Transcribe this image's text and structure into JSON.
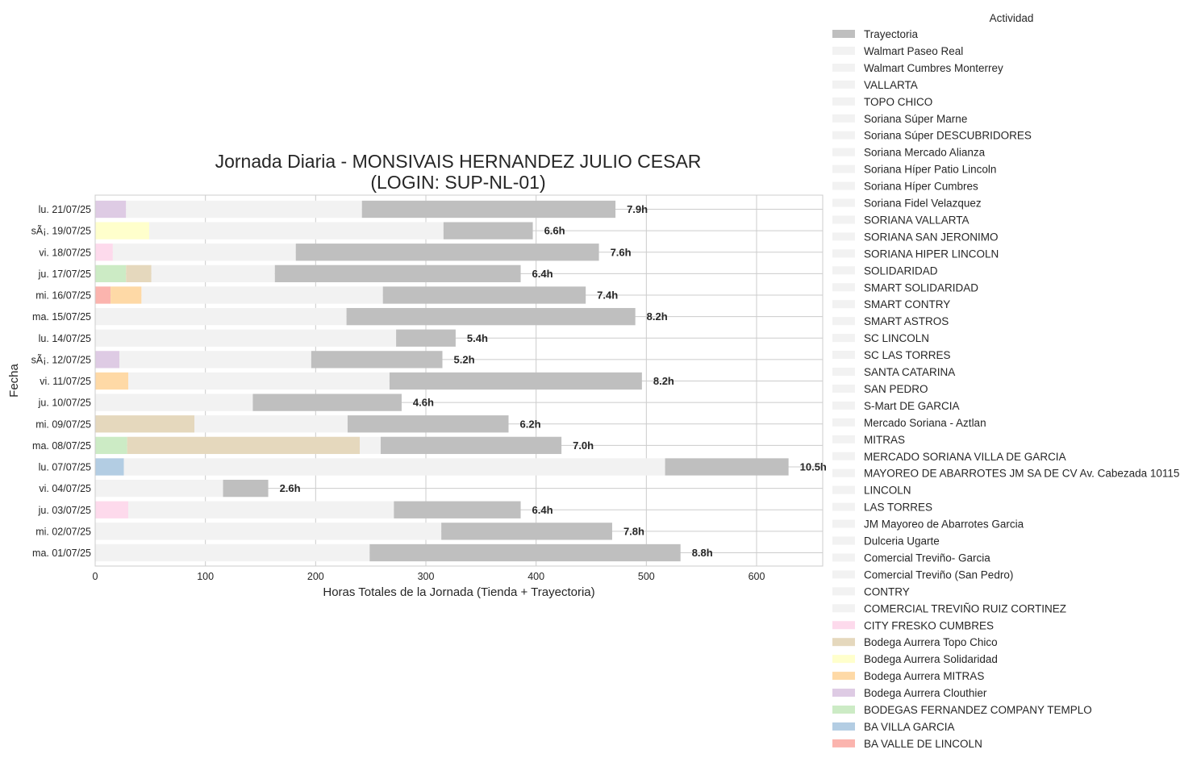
{
  "chart_data": {
    "type": "bar",
    "orientation": "horizontal",
    "stacked": true,
    "title": "Jornada Diaria - MONSIVAIS HERNANDEZ JULIO CESAR",
    "subtitle": "(LOGIN: SUP-NL-01)",
    "xlabel": "Horas Totales de la Jornada (Tienda + Trayectoria)",
    "ylabel": "Fecha",
    "xlim": [
      0,
      660
    ],
    "xticks": [
      "0",
      "100",
      "200",
      "300",
      "400",
      "500",
      "600"
    ],
    "grid": true,
    "legend_title": "Actividad",
    "legend_position": "right-outside",
    "legend": [
      {
        "label": "Trayectoria",
        "color": "#bfbfbf"
      },
      {
        "label": "Walmart Paseo Real",
        "color": "#f2f2f2"
      },
      {
        "label": "Walmart Cumbres Monterrey",
        "color": "#f2f2f2"
      },
      {
        "label": "VALLARTA",
        "color": "#f2f2f2"
      },
      {
        "label": "TOPO CHICO",
        "color": "#f2f2f2"
      },
      {
        "label": "Soriana Súper Marne",
        "color": "#f2f2f2"
      },
      {
        "label": "Soriana Súper DESCUBRIDORES",
        "color": "#f2f2f2"
      },
      {
        "label": "Soriana Mercado Alianza",
        "color": "#f2f2f2"
      },
      {
        "label": "Soriana Híper Patio Lincoln",
        "color": "#f2f2f2"
      },
      {
        "label": "Soriana Híper Cumbres",
        "color": "#f2f2f2"
      },
      {
        "label": "Soriana Fidel Velazquez",
        "color": "#f2f2f2"
      },
      {
        "label": "SORIANA VALLARTA",
        "color": "#f2f2f2"
      },
      {
        "label": "SORIANA SAN JERONIMO",
        "color": "#f2f2f2"
      },
      {
        "label": "SORIANA HIPER LINCOLN",
        "color": "#f2f2f2"
      },
      {
        "label": "SOLIDARIDAD",
        "color": "#f2f2f2"
      },
      {
        "label": "SMART SOLIDARIDAD",
        "color": "#f2f2f2"
      },
      {
        "label": "SMART CONTRY",
        "color": "#f2f2f2"
      },
      {
        "label": "SMART ASTROS",
        "color": "#f2f2f2"
      },
      {
        "label": "SC LINCOLN",
        "color": "#f2f2f2"
      },
      {
        "label": "SC LAS TORRES",
        "color": "#f2f2f2"
      },
      {
        "label": "SANTA CATARINA",
        "color": "#f2f2f2"
      },
      {
        "label": "SAN PEDRO",
        "color": "#f2f2f2"
      },
      {
        "label": "S-Mart DE GARCIA",
        "color": "#f2f2f2"
      },
      {
        "label": "Mercado Soriana - Aztlan",
        "color": "#f2f2f2"
      },
      {
        "label": "MITRAS",
        "color": "#f2f2f2"
      },
      {
        "label": "MERCADO SORIANA VILLA DE GARCIA",
        "color": "#f2f2f2"
      },
      {
        "label": "MAYOREO DE ABARROTES JM SA DE CV Av. Cabezada 10115",
        "color": "#f2f2f2"
      },
      {
        "label": "LINCOLN",
        "color": "#f2f2f2"
      },
      {
        "label": "LAS TORRES",
        "color": "#f2f2f2"
      },
      {
        "label": "JM Mayoreo de Abarrotes Garcia",
        "color": "#f2f2f2"
      },
      {
        "label": "Dulceria Ugarte",
        "color": "#f2f2f2"
      },
      {
        "label": "Comercial Treviño- Garcia",
        "color": "#f2f2f2"
      },
      {
        "label": "Comercial Treviño (San Pedro)",
        "color": "#f2f2f2"
      },
      {
        "label": "CONTRY",
        "color": "#f2f2f2"
      },
      {
        "label": "COMERCIAL TREVIÑO RUIZ CORTINEZ",
        "color": "#f2f2f2"
      },
      {
        "label": "CITY FRESKO CUMBRES",
        "color": "#fddaec"
      },
      {
        "label": "Bodega Aurrera Topo Chico",
        "color": "#e5d8bd"
      },
      {
        "label": "Bodega Aurrera Solidaridad",
        "color": "#ffffcc"
      },
      {
        "label": "Bodega Aurrera MITRAS",
        "color": "#fed9a6"
      },
      {
        "label": "Bodega Aurrera Clouthier",
        "color": "#decbe4"
      },
      {
        "label": "BODEGAS FERNANDEZ COMPANY TEMPLO",
        "color": "#ccebc5"
      },
      {
        "label": "BA VILLA GARCIA",
        "color": "#b3cde3"
      },
      {
        "label": "BA VALLE DE LINCOLN",
        "color": "#fbb4ae"
      }
    ],
    "rows": [
      {
        "date": "lu. 21/07/25",
        "total_label": "7.9h",
        "segments": [
          {
            "activity": "Bodega Aurrera Clouthier",
            "start": 0,
            "end": 28
          },
          {
            "activity": "Walmart Paseo Real",
            "start": 28,
            "end": 242
          },
          {
            "activity": "Trayectoria",
            "start": 242,
            "end": 472
          }
        ]
      },
      {
        "date": "sÃ¡. 19/07/25",
        "total_label": "6.6h",
        "segments": [
          {
            "activity": "Bodega Aurrera Solidaridad",
            "start": 0,
            "end": 49
          },
          {
            "activity": "Walmart Paseo Real",
            "start": 49,
            "end": 316
          },
          {
            "activity": "Trayectoria",
            "start": 316,
            "end": 397
          }
        ]
      },
      {
        "date": "vi. 18/07/25",
        "total_label": "7.6h",
        "segments": [
          {
            "activity": "CITY FRESKO CUMBRES",
            "start": 0,
            "end": 16
          },
          {
            "activity": "Walmart Paseo Real",
            "start": 16,
            "end": 182
          },
          {
            "activity": "Trayectoria",
            "start": 182,
            "end": 457
          }
        ]
      },
      {
        "date": "ju. 17/07/25",
        "total_label": "6.4h",
        "segments": [
          {
            "activity": "BODEGAS FERNANDEZ COMPANY TEMPLO",
            "start": 0,
            "end": 28
          },
          {
            "activity": "Bodega Aurrera Topo Chico",
            "start": 28,
            "end": 51
          },
          {
            "activity": "Walmart Paseo Real",
            "start": 51,
            "end": 163
          },
          {
            "activity": "Trayectoria",
            "start": 163,
            "end": 386
          }
        ]
      },
      {
        "date": "mi. 16/07/25",
        "total_label": "7.4h",
        "segments": [
          {
            "activity": "BA VALLE DE LINCOLN",
            "start": 0,
            "end": 14
          },
          {
            "activity": "Bodega Aurrera MITRAS",
            "start": 14,
            "end": 42
          },
          {
            "activity": "Walmart Paseo Real",
            "start": 42,
            "end": 261
          },
          {
            "activity": "Trayectoria",
            "start": 261,
            "end": 445
          }
        ]
      },
      {
        "date": "ma. 15/07/25",
        "total_label": "8.2h",
        "segments": [
          {
            "activity": "Walmart Paseo Real",
            "start": 0,
            "end": 228
          },
          {
            "activity": "Trayectoria",
            "start": 228,
            "end": 490
          }
        ]
      },
      {
        "date": "lu. 14/07/25",
        "total_label": "5.4h",
        "segments": [
          {
            "activity": "Walmart Paseo Real",
            "start": 0,
            "end": 273
          },
          {
            "activity": "Trayectoria",
            "start": 273,
            "end": 327
          }
        ]
      },
      {
        "date": "sÃ¡. 12/07/25",
        "total_label": "5.2h",
        "segments": [
          {
            "activity": "Bodega Aurrera Clouthier",
            "start": 0,
            "end": 22
          },
          {
            "activity": "Walmart Paseo Real",
            "start": 22,
            "end": 196
          },
          {
            "activity": "Trayectoria",
            "start": 196,
            "end": 315
          }
        ]
      },
      {
        "date": "vi. 11/07/25",
        "total_label": "8.2h",
        "segments": [
          {
            "activity": "Bodega Aurrera MITRAS",
            "start": 0,
            "end": 30
          },
          {
            "activity": "Walmart Paseo Real",
            "start": 30,
            "end": 267
          },
          {
            "activity": "Trayectoria",
            "start": 267,
            "end": 496
          }
        ]
      },
      {
        "date": "ju. 10/07/25",
        "total_label": "4.6h",
        "segments": [
          {
            "activity": "Walmart Paseo Real",
            "start": 0,
            "end": 143
          },
          {
            "activity": "Trayectoria",
            "start": 143,
            "end": 278
          }
        ]
      },
      {
        "date": "mi. 09/07/25",
        "total_label": "6.2h",
        "segments": [
          {
            "activity": "Bodega Aurrera Topo Chico",
            "start": 0,
            "end": 90
          },
          {
            "activity": "Walmart Paseo Real",
            "start": 90,
            "end": 229
          },
          {
            "activity": "Trayectoria",
            "start": 229,
            "end": 375
          }
        ]
      },
      {
        "date": "ma. 08/07/25",
        "total_label": "7.0h",
        "segments": [
          {
            "activity": "BODEGAS FERNANDEZ COMPANY TEMPLO",
            "start": 0,
            "end": 29
          },
          {
            "activity": "Bodega Aurrera Topo Chico",
            "start": 29,
            "end": 240
          },
          {
            "activity": "Walmart Paseo Real",
            "start": 240,
            "end": 259
          },
          {
            "activity": "Trayectoria",
            "start": 259,
            "end": 423
          }
        ]
      },
      {
        "date": "lu. 07/07/25",
        "total_label": "10.5h",
        "segments": [
          {
            "activity": "BA VILLA GARCIA",
            "start": 0,
            "end": 26
          },
          {
            "activity": "Walmart Paseo Real",
            "start": 26,
            "end": 517
          },
          {
            "activity": "Trayectoria",
            "start": 517,
            "end": 629
          }
        ]
      },
      {
        "date": "vi. 04/07/25",
        "total_label": "2.6h",
        "segments": [
          {
            "activity": "Walmart Paseo Real",
            "start": 0,
            "end": 116
          },
          {
            "activity": "Trayectoria",
            "start": 116,
            "end": 157
          }
        ]
      },
      {
        "date": "ju. 03/07/25",
        "total_label": "6.4h",
        "segments": [
          {
            "activity": "CITY FRESKO CUMBRES",
            "start": 0,
            "end": 30
          },
          {
            "activity": "Walmart Paseo Real",
            "start": 30,
            "end": 271
          },
          {
            "activity": "Trayectoria",
            "start": 271,
            "end": 386
          }
        ]
      },
      {
        "date": "mi. 02/07/25",
        "total_label": "7.8h",
        "segments": [
          {
            "activity": "Walmart Paseo Real",
            "start": 0,
            "end": 314
          },
          {
            "activity": "Trayectoria",
            "start": 314,
            "end": 469
          }
        ]
      },
      {
        "date": "ma. 01/07/25",
        "total_label": "8.8h",
        "segments": [
          {
            "activity": "Walmart Paseo Real",
            "start": 0,
            "end": 249
          },
          {
            "activity": "Trayectoria",
            "start": 249,
            "end": 531
          }
        ]
      }
    ]
  }
}
